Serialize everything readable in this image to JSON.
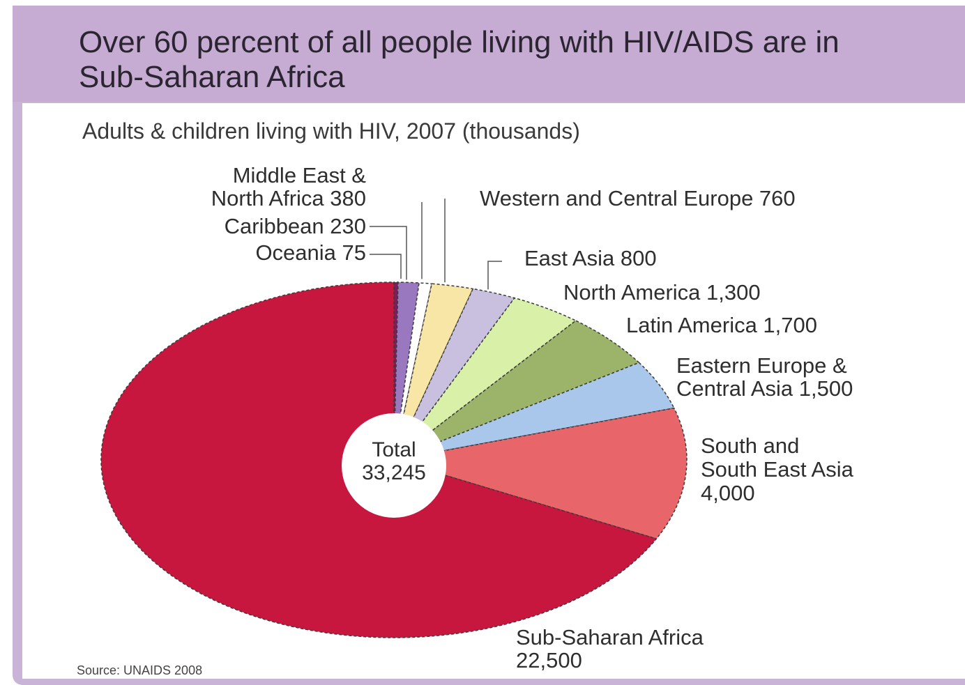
{
  "header": {
    "title": "Over 60 percent of all people living with HIV/AIDS are in Sub-Saharan Africa"
  },
  "chart_data": {
    "type": "pie",
    "title": "Over 60 percent of all people living with HIV/AIDS are in Sub-Saharan Africa",
    "subtitle": "Adults & children living with HIV, 2007 (thousands)",
    "center_label_line1": "Total",
    "center_label_line2": "33,245",
    "total": 33245,
    "units": "thousands",
    "source": "Source: UNAIDS 2008",
    "slices": [
      {
        "name": "Oceania",
        "label": "Oceania 75",
        "value": 75,
        "color": "#7a1f5c"
      },
      {
        "name": "Middle East & North Africa",
        "label_line1": "Middle East &",
        "label_line2": "North Africa 380",
        "value": 380,
        "color": "#9a78c0"
      },
      {
        "name": "Caribbean",
        "label": "Caribbean 230",
        "value": 230,
        "color": "#ffffff"
      },
      {
        "name": "Western and Central Europe",
        "label": "Western and Central Europe 760",
        "value": 760,
        "color": "#f7e6a5"
      },
      {
        "name": "East Asia",
        "label": "East Asia 800",
        "value": 800,
        "color": "#c9c0df"
      },
      {
        "name": "North America",
        "label": "North America 1,300",
        "value": 1300,
        "color": "#d8f0a8"
      },
      {
        "name": "Latin America",
        "label": "Latin America 1,700",
        "value": 1700,
        "color": "#9bb46a"
      },
      {
        "name": "Eastern Europe & Central Asia",
        "label_line1": "Eastern Europe &",
        "label_line2": "Central Asia 1,500",
        "value": 1500,
        "color": "#a9c7ea"
      },
      {
        "name": "South and South East Asia",
        "label_line1": "South and",
        "label_line2": "South East Asia",
        "label_line3": "4,000",
        "value": 4000,
        "color": "#e8666a"
      },
      {
        "name": "Sub-Saharan Africa",
        "label_line1": "Sub-Saharan Africa",
        "label_line2": "22,500",
        "value": 22500,
        "color": "#c8173f"
      }
    ]
  }
}
